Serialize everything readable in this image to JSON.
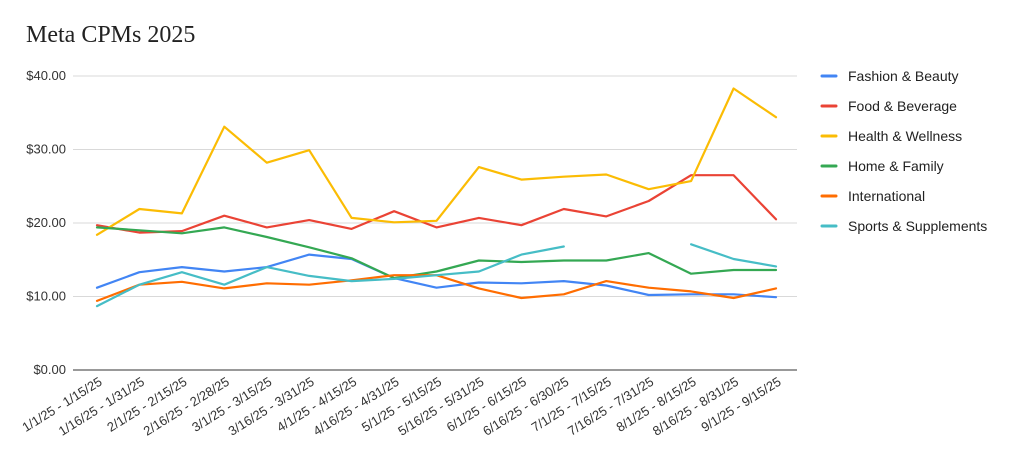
{
  "chart_data": {
    "type": "line",
    "title": "Meta CPMs 2025",
    "xlabel": "",
    "ylabel": "",
    "ylim": [
      0,
      40
    ],
    "yticks": [
      "$0.00",
      "$10.00",
      "$20.00",
      "$30.00",
      "$40.00"
    ],
    "ytick_values": [
      0,
      10,
      20,
      30,
      40
    ],
    "grid": true,
    "legend_position": "right",
    "categories": [
      "1/1/25 - 1/15/25",
      "1/16/25 - 1/31/25",
      "2/1/25 - 2/15/25",
      "2/16/25 - 2/28/25",
      "3/1/25 - 3/15/25",
      "3/16/25 - 3/31/25",
      "4/1/25 - 4/15/25",
      "4/16/25 - 4/31/25",
      "5/1/25 - 5/15/25",
      "5/16/25 - 5/31/25",
      "6/1/25 - 6/15/25",
      "6/16/25 - 6/30/25",
      "7/1/25 - 7/15/25",
      "7/16/25 - 7/31/25",
      "8/1/25 - 8/15/25",
      "8/16/25 - 8/31/25",
      "9/1/25 - 9/15/25"
    ],
    "series": [
      {
        "name": "Fashion & Beauty",
        "color": "#4285F4",
        "values": [
          11.2,
          13.3,
          14.0,
          13.4,
          14.0,
          15.7,
          15.1,
          12.5,
          11.2,
          11.9,
          11.8,
          12.1,
          11.5,
          10.2,
          10.3,
          10.3,
          9.9
        ]
      },
      {
        "name": "Food & Beverage",
        "color": "#EA4335",
        "values": [
          19.7,
          18.7,
          18.9,
          21.0,
          19.4,
          20.4,
          19.2,
          21.6,
          19.4,
          20.7,
          19.7,
          21.9,
          20.9,
          23.0,
          26.5,
          26.5,
          20.5
        ]
      },
      {
        "name": "Health & Wellness",
        "color": "#FBBC04",
        "values": [
          18.4,
          21.9,
          21.3,
          33.1,
          28.2,
          29.9,
          20.7,
          20.1,
          20.3,
          27.6,
          25.9,
          26.3,
          26.6,
          24.6,
          25.7,
          38.3,
          34.4
        ]
      },
      {
        "name": "Home & Family",
        "color": "#34A853",
        "values": [
          19.4,
          19.0,
          18.6,
          19.4,
          18.1,
          16.7,
          15.2,
          12.5,
          13.4,
          14.9,
          14.7,
          14.9,
          14.9,
          15.9,
          13.1,
          13.6,
          13.6
        ]
      },
      {
        "name": "International",
        "color": "#FF6D01",
        "values": [
          9.4,
          11.6,
          12.0,
          11.1,
          11.8,
          11.6,
          12.2,
          12.9,
          12.9,
          11.1,
          9.8,
          10.3,
          12.1,
          11.2,
          10.7,
          9.8,
          11.1
        ]
      },
      {
        "name": "Sports & Supplements",
        "color": "#46BDC6",
        "values": [
          8.7,
          11.6,
          13.3,
          11.6,
          14.0,
          12.8,
          12.1,
          12.4,
          12.9,
          13.4,
          15.7,
          16.8,
          null,
          null,
          17.1,
          15.1,
          14.1
        ]
      }
    ]
  }
}
